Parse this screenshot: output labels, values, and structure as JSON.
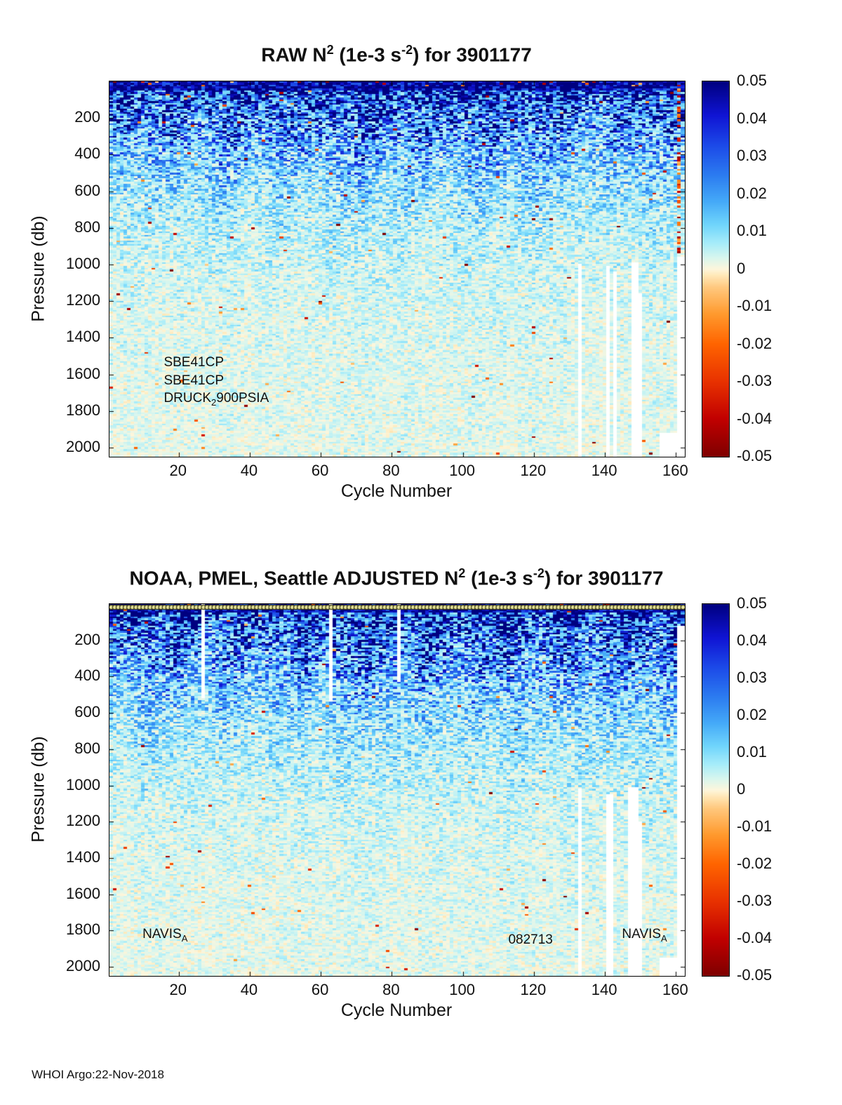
{
  "footer": "WHOI Argo:22-Nov-2018",
  "colormap_stops": [
    {
      "t": 0.0,
      "color": "#7f0000"
    },
    {
      "t": 0.1,
      "color": "#c10000"
    },
    {
      "t": 0.2,
      "color": "#e83200"
    },
    {
      "t": 0.3,
      "color": "#ff6400"
    },
    {
      "t": 0.38,
      "color": "#ff9a2e"
    },
    {
      "t": 0.45,
      "color": "#ffc87d"
    },
    {
      "t": 0.485,
      "color": "#ffeabc"
    },
    {
      "t": 0.5,
      "color": "#fdf6dc"
    },
    {
      "t": 0.53,
      "color": "#d8f6ee"
    },
    {
      "t": 0.57,
      "color": "#a5ecfa"
    },
    {
      "t": 0.62,
      "color": "#6fd4fb"
    },
    {
      "t": 0.68,
      "color": "#45aaf8"
    },
    {
      "t": 0.75,
      "color": "#2c7cf0"
    },
    {
      "t": 0.83,
      "color": "#1c4ae8"
    },
    {
      "t": 0.91,
      "color": "#1014d4"
    },
    {
      "t": 1.0,
      "color": "#000080"
    }
  ],
  "chart_data": [
    {
      "type": "heatmap",
      "title": {
        "pre": "RAW N",
        "sup1": "2",
        "mid": " (1e-3 s",
        "sup2": "-2",
        "post": ") for 3901177"
      },
      "xlabel": "Cycle Number",
      "ylabel": "Pressure (db)",
      "x_range": [
        1,
        162
      ],
      "y_range": [
        0,
        2050
      ],
      "y_direction": "reversed",
      "xticks": [
        20,
        40,
        60,
        80,
        100,
        120,
        140,
        160
      ],
      "yticks": [
        200,
        400,
        600,
        800,
        1000,
        1200,
        1400,
        1600,
        1800,
        2000
      ],
      "value_range": [
        -0.05,
        0.05
      ],
      "colorbar_ticks": [
        0.05,
        0.04,
        0.03,
        0.02,
        0.01,
        0,
        -0.01,
        -0.02,
        -0.03,
        -0.04,
        -0.05
      ],
      "field_model": {
        "description": "Noisy N^2 section: high values ~0.03-0.05 (dark blue) in upper 0-400 db, decaying with depth to near-zero pale yellow/cyan below ~1200 db, heavy random speckle, sparse negative (red) outliers, red anomaly column near cycle 161.",
        "surface_amp": 0.052,
        "decay_db": 260,
        "deep_amp": 0.004,
        "deep_decay_db": 1200,
        "offset": 0.0015,
        "noise_gain": 2.4,
        "negative_speck_prob": 0.004,
        "seed": 7
      },
      "missing_columns": [
        {
          "cycle": 133,
          "p_from": 1000,
          "p_to": 2050
        },
        {
          "cycle": 141,
          "p_from": 1010,
          "p_to": 2050
        },
        {
          "cycle": 143,
          "p_from": 1040,
          "p_to": 2050
        },
        {
          "cycle": 148,
          "p_from": 990,
          "p_to": 2050
        },
        {
          "cycle": 149,
          "p_from": 990,
          "p_to": 2050
        },
        {
          "cycle": 150,
          "p_from": 1160,
          "p_to": 2050
        },
        {
          "cycle": 156,
          "p_from": 1920,
          "p_to": 2050
        },
        {
          "cycle": 157,
          "p_from": 1920,
          "p_to": 2050
        },
        {
          "cycle": 158,
          "p_from": 1920,
          "p_to": 2050
        },
        {
          "cycle": 159,
          "p_from": 1920,
          "p_to": 2050
        },
        {
          "cycle": 160,
          "p_from": 1920,
          "p_to": 2050
        },
        {
          "cycle": 161,
          "p_from": 960,
          "p_to": 2050
        },
        {
          "cycle": 162,
          "p_from": 960,
          "p_to": 2050
        }
      ],
      "anomaly_columns": [
        {
          "cycle": 161,
          "p_from": 40,
          "p_to": 950,
          "negative_prob": 0.45
        }
      ],
      "annotations": [
        {
          "parts": [
            {
              "t": "SBE41CP"
            }
          ],
          "cycle": 16,
          "pressure": 1540
        },
        {
          "parts": [
            {
              "t": "SBE41CP"
            }
          ],
          "cycle": 16,
          "pressure": 1640
        },
        {
          "parts": [
            {
              "t": "DRUCK"
            },
            {
              "t": "2",
              "sub": true
            },
            {
              "t": "900PSIA"
            }
          ],
          "cycle": 16,
          "pressure": 1735
        }
      ],
      "top_markers": false
    },
    {
      "type": "heatmap",
      "title": {
        "pre": "NOAA, PMEL, Seattle  ADJUSTED N",
        "sup1": "2",
        "mid": " (1e-3 s",
        "sup2": "-2",
        "post": ") for 3901177"
      },
      "xlabel": "Cycle Number",
      "ylabel": "Pressure (db)",
      "x_range": [
        1,
        162
      ],
      "y_range": [
        0,
        2050
      ],
      "y_direction": "reversed",
      "xticks": [
        20,
        40,
        60,
        80,
        100,
        120,
        140,
        160
      ],
      "yticks": [
        200,
        400,
        600,
        800,
        1000,
        1200,
        1400,
        1600,
        1800,
        2000
      ],
      "value_range": [
        -0.05,
        0.05
      ],
      "colorbar_ticks": [
        0.05,
        0.04,
        0.03,
        0.02,
        0.01,
        0,
        -0.01,
        -0.02,
        -0.03,
        -0.04,
        -0.05
      ],
      "field_model": {
        "description": "Adjusted N^2 section: same structure as raw with dark-blue stratified upper 0-500 db, pale near-zero field at depth, circle markers along the top edge, and several white missing-profile columns.",
        "surface_amp": 0.05,
        "decay_db": 300,
        "deep_amp": 0.004,
        "deep_decay_db": 1200,
        "offset": 0.0015,
        "noise_gain": 2.4,
        "negative_speck_prob": 0.003,
        "seed": 13
      },
      "missing_columns": [
        {
          "cycle": 27,
          "p_from": 0,
          "p_to": 520
        },
        {
          "cycle": 63,
          "p_from": 0,
          "p_to": 540
        },
        {
          "cycle": 82,
          "p_from": 0,
          "p_to": 430
        },
        {
          "cycle": 133,
          "p_from": 1020,
          "p_to": 2050
        },
        {
          "cycle": 141,
          "p_from": 1050,
          "p_to": 2050
        },
        {
          "cycle": 142,
          "p_from": 1050,
          "p_to": 2050
        },
        {
          "cycle": 147,
          "p_from": 1010,
          "p_to": 2050
        },
        {
          "cycle": 148,
          "p_from": 1010,
          "p_to": 2050
        },
        {
          "cycle": 149,
          "p_from": 1010,
          "p_to": 2050
        },
        {
          "cycle": 150,
          "p_from": 1200,
          "p_to": 2050
        },
        {
          "cycle": 156,
          "p_from": 1950,
          "p_to": 2050
        },
        {
          "cycle": 157,
          "p_from": 1950,
          "p_to": 2050
        },
        {
          "cycle": 158,
          "p_from": 1950,
          "p_to": 2050
        },
        {
          "cycle": 159,
          "p_from": 1950,
          "p_to": 2050
        },
        {
          "cycle": 160,
          "p_from": 1950,
          "p_to": 2050
        },
        {
          "cycle": 161,
          "p_from": 120,
          "p_to": 2050
        },
        {
          "cycle": 162,
          "p_from": 120,
          "p_to": 2050
        }
      ],
      "anomaly_columns": [],
      "annotations": [
        {
          "parts": [
            {
              "t": "NAVIS"
            },
            {
              "t": "A",
              "sub": true
            }
          ],
          "cycle": 10,
          "pressure": 1825
        },
        {
          "parts": [
            {
              "t": "082713"
            }
          ],
          "cycle": 113,
          "pressure": 1855
        },
        {
          "parts": [
            {
              "t": "NAVIS"
            },
            {
              "t": "A",
              "sub": true
            }
          ],
          "cycle": 145,
          "pressure": 1825
        }
      ],
      "top_markers": true
    }
  ]
}
